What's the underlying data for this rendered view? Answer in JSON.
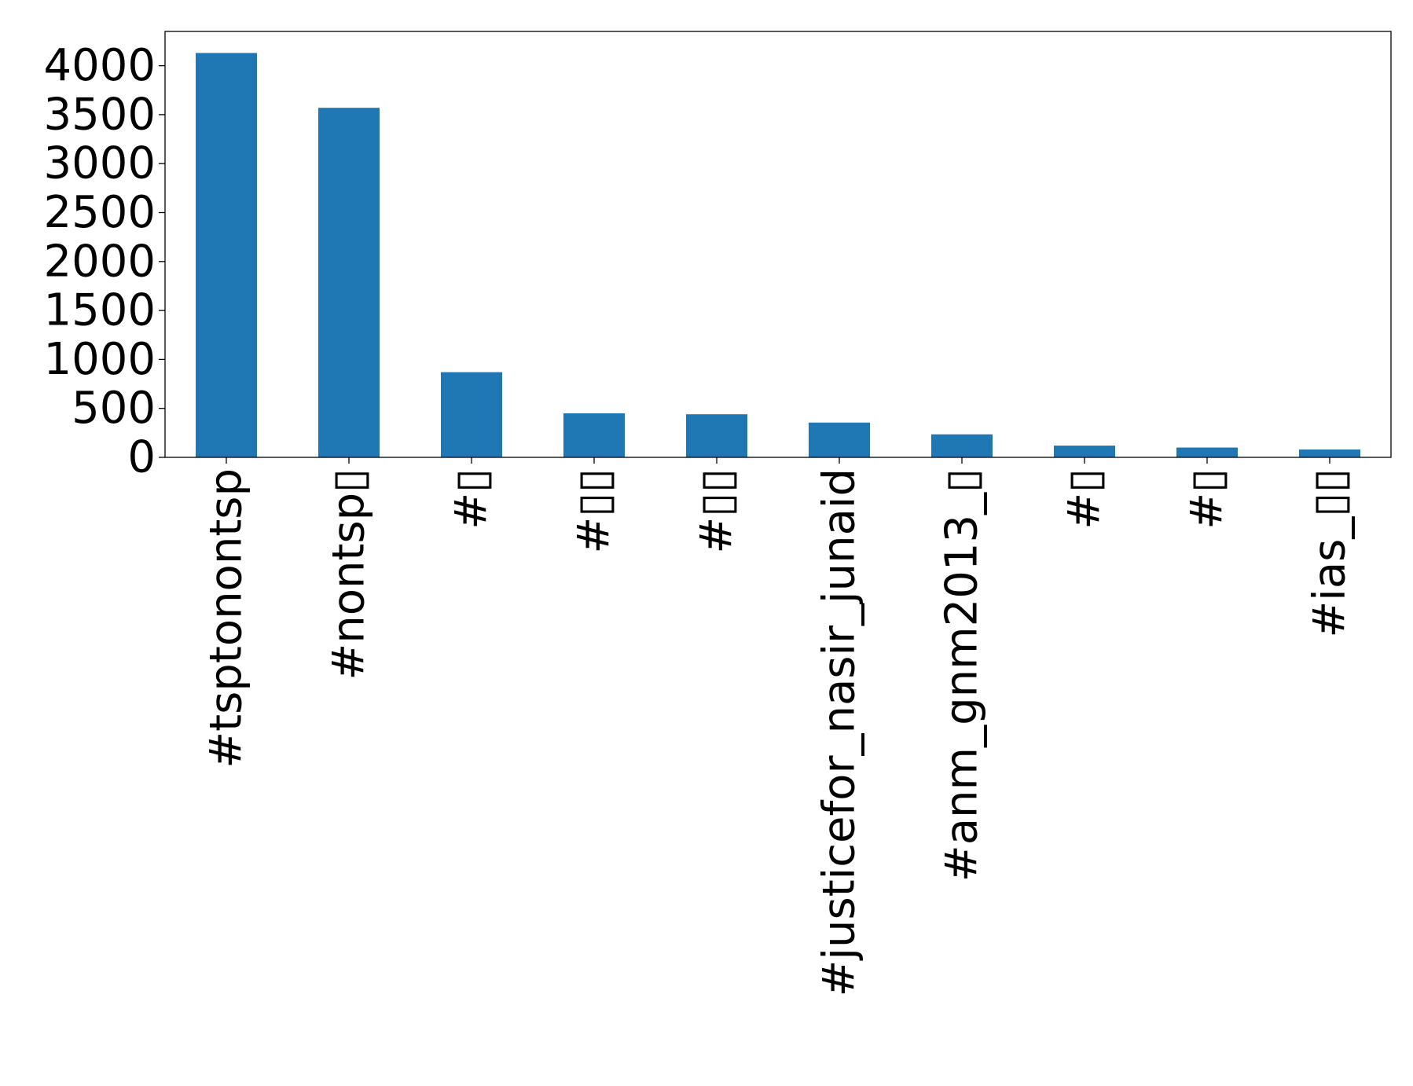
{
  "chart_data": {
    "type": "bar",
    "title": "",
    "xlabel": "",
    "ylabel": "",
    "categories": [
      "#tsptonontsp",
      "#nontsp▯",
      "#▯",
      "#▯▯",
      "#▯▯",
      "#justicefor_nasir_junaid",
      "#anm_gnm2013_▯",
      "#▯",
      "#▯",
      "#ias_▯▯"
    ],
    "values": [
      4130,
      3570,
      870,
      450,
      440,
      355,
      235,
      120,
      100,
      80
    ],
    "ylim": [
      0,
      4350
    ],
    "yticks": [
      0,
      500,
      1000,
      1500,
      2000,
      2500,
      3000,
      3500,
      4000
    ],
    "bar_color": "#1f77b4",
    "grid": false,
    "legend": "none"
  }
}
